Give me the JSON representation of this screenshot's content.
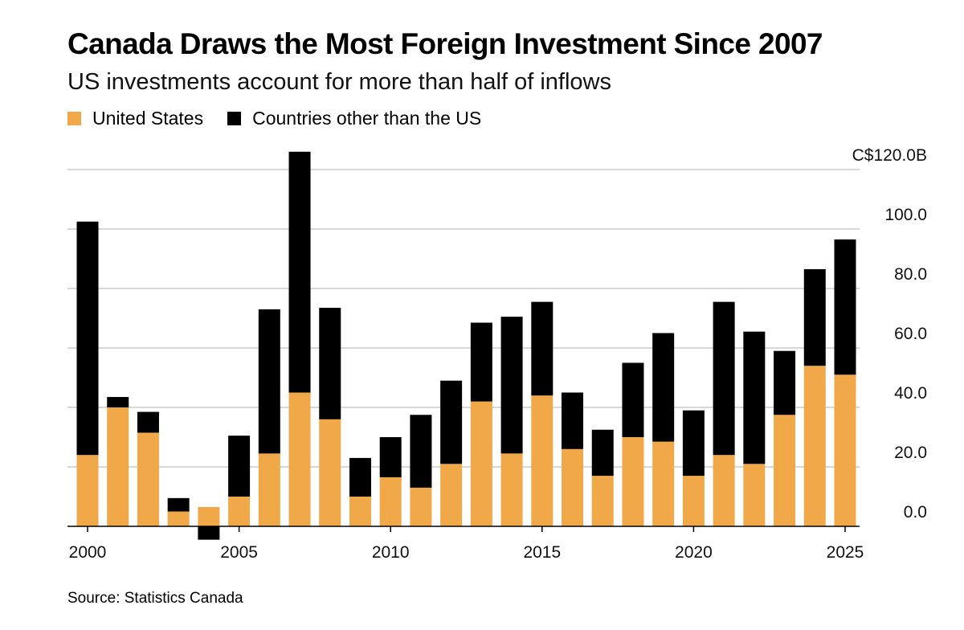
{
  "chart_data": {
    "type": "bar",
    "stacked": true,
    "title": "Canada Draws the Most Foreign Investment Since 2007",
    "subtitle": "US investments account for more than half of inflows",
    "source": "Source: Statistics Canada",
    "colors": {
      "us": "#f0a848",
      "other": "#000000",
      "grid": "#cccccc"
    },
    "x": [
      2000,
      2001,
      2002,
      2003,
      2004,
      2005,
      2006,
      2007,
      2008,
      2009,
      2010,
      2011,
      2012,
      2013,
      2014,
      2015,
      2016,
      2017,
      2018,
      2019,
      2020,
      2021,
      2022,
      2023,
      2024,
      2025
    ],
    "series": [
      {
        "key": "us",
        "name": "United States",
        "values": [
          24.0,
          40.0,
          31.5,
          5.0,
          6.5,
          10.0,
          24.5,
          45.0,
          36.0,
          10.0,
          16.5,
          13.0,
          21.0,
          42.0,
          24.5,
          44.0,
          26.0,
          17.0,
          30.0,
          28.5,
          17.0,
          24.0,
          21.0,
          37.5,
          54.0,
          51.0
        ]
      },
      {
        "key": "other",
        "name": "Countries other than the US",
        "values": [
          78.5,
          3.5,
          7.0,
          4.5,
          -4.5,
          20.5,
          48.5,
          81.0,
          37.5,
          13.0,
          13.5,
          24.5,
          28.0,
          26.5,
          46.0,
          31.5,
          19.0,
          15.5,
          25.0,
          36.5,
          22.0,
          51.5,
          44.5,
          21.5,
          32.5,
          45.5
        ]
      }
    ],
    "y_ticks": [
      "0.0",
      "20.0",
      "40.0",
      "60.0",
      "80.0",
      "100.0",
      "C$120.0B"
    ],
    "y_tick_values": [
      0,
      20,
      40,
      60,
      80,
      100,
      120
    ],
    "x_ticks": [
      "2000",
      "2005",
      "2010",
      "2015",
      "2020",
      "2025"
    ],
    "x_tick_values": [
      2000,
      2005,
      2010,
      2015,
      2020,
      2025
    ],
    "ylim": [
      -5,
      127
    ],
    "xlabel": "",
    "ylabel": "",
    "legend_position": "top-left",
    "grid": true
  }
}
